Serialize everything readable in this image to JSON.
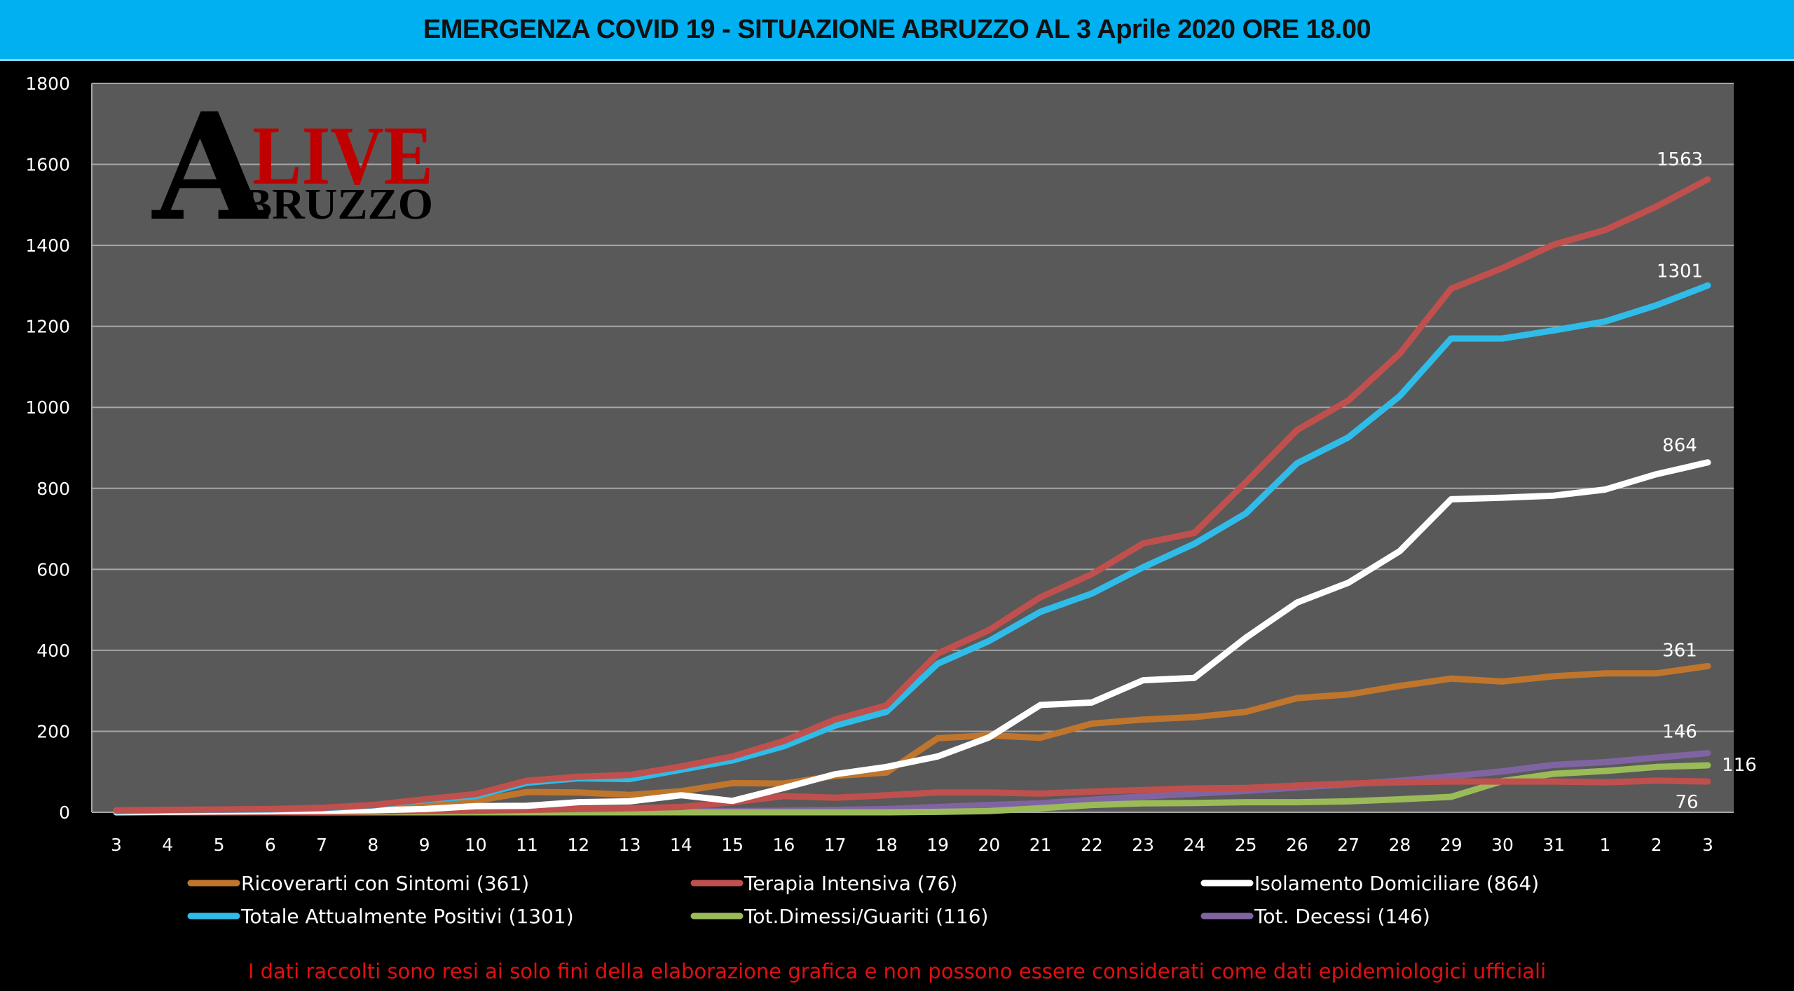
{
  "title": "EMERGENZA COVID 19 - SITUAZIONE ABRUZZO AL 3 Aprile 2020 ORE 18.00",
  "logo": {
    "line1": "LIVE",
    "initial": "A",
    "line2": "BRUZZO"
  },
  "footer": "I dati raccolti  sono resi ai solo fini della elaborazione grafica e non possono essere considerati come dati epidemiologici  ufficiali",
  "chart_data": {
    "type": "line",
    "title": "EMERGENZA COVID 19 - SITUAZIONE ABRUZZO AL 3 Aprile 2020 ORE 18.00",
    "xlabel": "",
    "ylabel": "",
    "ylim": [
      0,
      1800
    ],
    "yticks": [
      0,
      200,
      400,
      600,
      800,
      1000,
      1200,
      1400,
      1600,
      1800
    ],
    "grid": true,
    "legend_placement": "bottom",
    "background": "#595959",
    "categories": [
      "3",
      "4",
      "5",
      "6",
      "7",
      "8",
      "9",
      "10",
      "11",
      "12",
      "13",
      "14",
      "15",
      "16",
      "17",
      "18",
      "19",
      "20",
      "21",
      "22",
      "23",
      "24",
      "25",
      "26",
      "27",
      "28",
      "29",
      "30",
      "31",
      "1",
      "2",
      "3"
    ],
    "series": [
      {
        "name": "",
        "color": "#c0504d",
        "end_label": "1563",
        "values": [
          5,
          6,
          7,
          8,
          11,
          18,
          32,
          45,
          78,
          88,
          92,
          113,
          138,
          176,
          229,
          264,
          392,
          450,
          531,
          588,
          664,
          690,
          815,
          944,
          1017,
          1133,
          1293,
          1344,
          1402,
          1438,
          1496,
          1563
        ]
      },
      {
        "name": "Totale Attualmente Positivi (1301)",
        "color": "#2fbce8",
        "end_label": "1301",
        "values": [
          2,
          5,
          6,
          7,
          10,
          17,
          30,
          40,
          73,
          84,
          82,
          105,
          128,
          163,
          214,
          248,
          367,
          423,
          495,
          540,
          605,
          663,
          738,
          862,
          926,
          1028,
          1170,
          1170,
          1190,
          1212,
          1252,
          1301
        ]
      },
      {
        "name": "Ricoverarti con Sintomi (361)",
        "color": "#c0752d",
        "end_label": "361",
        "values": [
          1,
          2,
          3,
          3,
          5,
          10,
          20,
          28,
          50,
          49,
          43,
          52,
          72,
          71,
          90,
          98,
          183,
          190,
          184,
          219,
          229,
          235,
          248,
          282,
          291,
          312,
          330,
          323,
          336,
          343,
          343,
          361
        ]
      },
      {
        "name": "Isolamento Domiciliare (864)",
        "color": "#ffffff",
        "end_label": "864",
        "values": [
          0,
          1,
          2,
          3,
          4,
          5,
          8,
          15,
          16,
          25,
          27,
          42,
          28,
          60,
          94,
          112,
          138,
          185,
          265,
          271,
          326,
          332,
          431,
          518,
          567,
          645,
          773,
          777,
          782,
          797,
          835,
          864
        ]
      },
      {
        "name": "Terapia Intensiva (76)",
        "color": "#c0504d",
        "end_label": "76",
        "values": [
          0,
          0,
          0,
          0,
          1,
          2,
          3,
          4,
          6,
          8,
          10,
          13,
          25,
          40,
          36,
          42,
          49,
          49,
          46,
          51,
          55,
          59,
          60,
          66,
          71,
          74,
          76,
          76,
          76,
          74,
          78,
          76
        ]
      },
      {
        "name": "Tot.Dimessi/Guariti (116)",
        "color": "#9bbb59",
        "end_label": "116",
        "values": [
          0,
          0,
          0,
          0,
          0,
          0,
          0,
          0,
          0,
          0,
          0,
          0,
          0,
          0,
          0,
          0,
          1,
          3,
          10,
          18,
          22,
          23,
          25,
          25,
          27,
          32,
          38,
          77,
          95,
          102,
          112,
          116
        ]
      },
      {
        "name": "Tot. Decessi (146)",
        "color": "#8064a2",
        "end_label": "146",
        "values": [
          0,
          0,
          0,
          0,
          0,
          1,
          1,
          1,
          1,
          2,
          2,
          3,
          3,
          4,
          6,
          8,
          13,
          18,
          22,
          31,
          39,
          46,
          53,
          61,
          69,
          78,
          89,
          101,
          117,
          124,
          135,
          146
        ]
      }
    ],
    "legend_order": [
      2,
      4,
      3,
      1,
      5,
      6
    ]
  }
}
